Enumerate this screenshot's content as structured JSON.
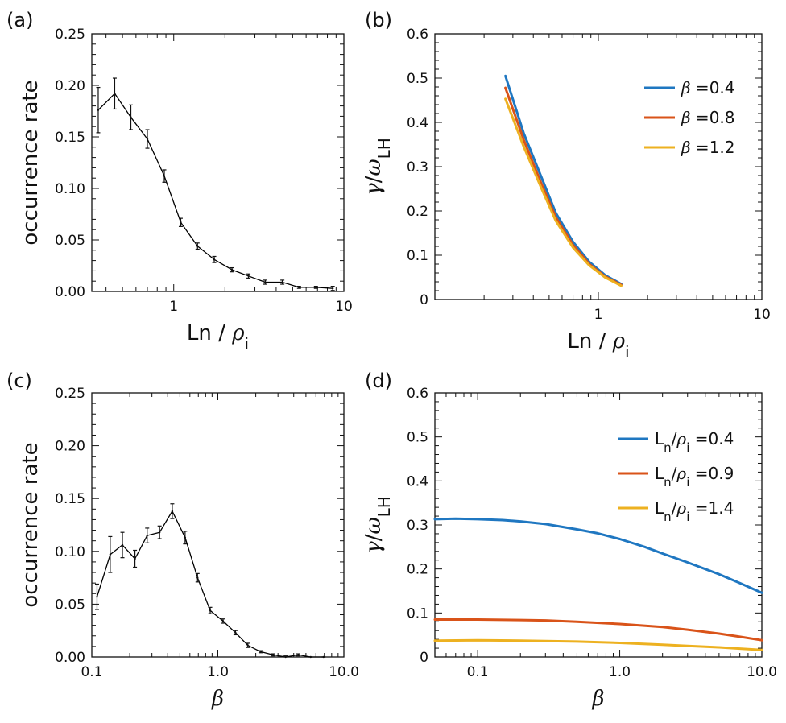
{
  "chart_data": [
    {
      "panel": "(a)",
      "type": "line",
      "x_scale": "log",
      "xlim": [
        0.33,
        10
      ],
      "ylim": [
        0,
        0.25
      ],
      "x_ticks": [
        {
          "v": 1,
          "label": "1"
        },
        {
          "v": 10,
          "label": "10"
        }
      ],
      "y_ticks": [
        {
          "v": 0,
          "label": "0.00"
        },
        {
          "v": 0.05,
          "label": "0.05"
        },
        {
          "v": 0.1,
          "label": "0.10"
        },
        {
          "v": 0.15,
          "label": "0.15"
        },
        {
          "v": 0.2,
          "label": "0.20"
        },
        {
          "v": 0.25,
          "label": "0.25"
        }
      ],
      "xlabel": "Ln / ρ_i",
      "ylabel": "occurrence rate",
      "series": [
        {
          "color": "#000000",
          "x": [
            0.36,
            0.45,
            0.56,
            0.7,
            0.88,
            1.1,
            1.38,
            1.73,
            2.2,
            2.75,
            3.45,
            4.35,
            5.45,
            6.85,
            8.6
          ],
          "y": [
            0.176,
            0.192,
            0.169,
            0.148,
            0.112,
            0.067,
            0.044,
            0.031,
            0.021,
            0.015,
            0.009,
            0.009,
            0.004,
            0.004,
            0.003
          ],
          "err": [
            0.022,
            0.015,
            0.012,
            0.009,
            0.006,
            0.004,
            0.003,
            0.003,
            0.002,
            0.002,
            0.002,
            0.002,
            0.001,
            0.001,
            0.002
          ]
        }
      ]
    },
    {
      "panel": "(b)",
      "type": "line",
      "x_scale": "log",
      "xlim": [
        0.1,
        10
      ],
      "ylim": [
        0,
        0.6
      ],
      "x_ticks": [
        {
          "v": 1,
          "label": "1"
        },
        {
          "v": 10,
          "label": "10"
        }
      ],
      "y_ticks": [
        {
          "v": 0,
          "label": "0"
        },
        {
          "v": 0.1,
          "label": "0.1"
        },
        {
          "v": 0.2,
          "label": "0.2"
        },
        {
          "v": 0.3,
          "label": "0.3"
        },
        {
          "v": 0.4,
          "label": "0.4"
        },
        {
          "v": 0.5,
          "label": "0.5"
        },
        {
          "v": 0.6,
          "label": "0.6"
        }
      ],
      "xlabel": "Ln / ρ_i",
      "ylabel": "γ/ω_LH",
      "legend_position": "top-right",
      "series": [
        {
          "name": "β =0.4",
          "color": "#1f77c1",
          "x": [
            0.27,
            0.35,
            0.45,
            0.55,
            0.7,
            0.88,
            1.1,
            1.38
          ],
          "y": [
            0.505,
            0.375,
            0.275,
            0.195,
            0.13,
            0.085,
            0.055,
            0.035
          ]
        },
        {
          "name": "β =0.8",
          "color": "#d95319",
          "x": [
            0.27,
            0.35,
            0.45,
            0.55,
            0.7,
            0.88,
            1.1,
            1.38
          ],
          "y": [
            0.478,
            0.36,
            0.26,
            0.185,
            0.123,
            0.08,
            0.052,
            0.033
          ]
        },
        {
          "name": "β =1.2",
          "color": "#edb120",
          "x": [
            0.27,
            0.35,
            0.45,
            0.55,
            0.7,
            0.88,
            1.1,
            1.38
          ],
          "y": [
            0.453,
            0.345,
            0.25,
            0.177,
            0.117,
            0.077,
            0.05,
            0.031
          ]
        }
      ]
    },
    {
      "panel": "(c)",
      "type": "line",
      "x_scale": "log",
      "xlim": [
        0.1,
        10
      ],
      "ylim": [
        0,
        0.25
      ],
      "x_ticks": [
        {
          "v": 0.1,
          "label": "0.1"
        },
        {
          "v": 1,
          "label": "1.0"
        },
        {
          "v": 10,
          "label": "10.0"
        }
      ],
      "y_ticks": [
        {
          "v": 0,
          "label": "0.00"
        },
        {
          "v": 0.05,
          "label": "0.05"
        },
        {
          "v": 0.1,
          "label": "0.10"
        },
        {
          "v": 0.15,
          "label": "0.15"
        },
        {
          "v": 0.2,
          "label": "0.20"
        },
        {
          "v": 0.25,
          "label": "0.25"
        }
      ],
      "xlabel": "β",
      "ylabel": "occurrence rate",
      "series": [
        {
          "color": "#000000",
          "x": [
            0.11,
            0.14,
            0.175,
            0.22,
            0.275,
            0.345,
            0.435,
            0.55,
            0.69,
            0.87,
            1.1,
            1.38,
            1.73,
            2.18,
            2.75,
            3.45,
            4.35,
            5.45,
            6.9
          ],
          "y": [
            0.057,
            0.097,
            0.106,
            0.093,
            0.115,
            0.118,
            0.138,
            0.113,
            0.075,
            0.044,
            0.034,
            0.023,
            0.011,
            0.005,
            0.002,
            0.0,
            0.002,
            0.0,
            0.0
          ],
          "err": [
            0.012,
            0.017,
            0.012,
            0.008,
            0.007,
            0.006,
            0.007,
            0.006,
            0.004,
            0.003,
            0.002,
            0.002,
            0.002,
            0.001,
            0.001,
            0.001,
            0.001,
            0.0,
            0.0
          ]
        }
      ]
    },
    {
      "panel": "(d)",
      "type": "line",
      "x_scale": "log",
      "xlim": [
        0.05,
        10
      ],
      "ylim": [
        0,
        0.6
      ],
      "x_ticks": [
        {
          "v": 0.1,
          "label": "0.1"
        },
        {
          "v": 1,
          "label": "1.0"
        },
        {
          "v": 10,
          "label": "10.0"
        }
      ],
      "y_ticks": [
        {
          "v": 0,
          "label": "0"
        },
        {
          "v": 0.1,
          "label": "0.1"
        },
        {
          "v": 0.2,
          "label": "0.2"
        },
        {
          "v": 0.3,
          "label": "0.3"
        },
        {
          "v": 0.4,
          "label": "0.4"
        },
        {
          "v": 0.5,
          "label": "0.5"
        },
        {
          "v": 0.6,
          "label": "0.6"
        }
      ],
      "xlabel": "β",
      "ylabel": "γ/ω_LH",
      "legend_position": "top-right",
      "series": [
        {
          "name": "L_n/ρ_i =0.4",
          "color": "#1f77c1",
          "x": [
            0.05,
            0.07,
            0.1,
            0.15,
            0.2,
            0.3,
            0.5,
            0.7,
            1.0,
            1.5,
            2.0,
            3.0,
            5.0,
            7.0,
            10.0
          ],
          "y": [
            0.313,
            0.314,
            0.313,
            0.311,
            0.308,
            0.302,
            0.29,
            0.281,
            0.268,
            0.25,
            0.235,
            0.215,
            0.188,
            0.168,
            0.146
          ]
        },
        {
          "name": "L_n/ρ_i =0.9",
          "color": "#d95319",
          "x": [
            0.05,
            0.1,
            0.2,
            0.3,
            0.5,
            1.0,
            2.0,
            3.0,
            5.0,
            7.0,
            10.0
          ],
          "y": [
            0.085,
            0.085,
            0.084,
            0.083,
            0.08,
            0.075,
            0.068,
            0.062,
            0.053,
            0.046,
            0.038
          ]
        },
        {
          "name": "L_n/ρ_i =1.4",
          "color": "#edb120",
          "x": [
            0.05,
            0.1,
            0.2,
            0.3,
            0.5,
            1.0,
            2.0,
            3.0,
            5.0,
            7.0,
            10.0
          ],
          "y": [
            0.037,
            0.038,
            0.037,
            0.036,
            0.035,
            0.032,
            0.028,
            0.025,
            0.022,
            0.019,
            0.016
          ]
        }
      ]
    }
  ]
}
